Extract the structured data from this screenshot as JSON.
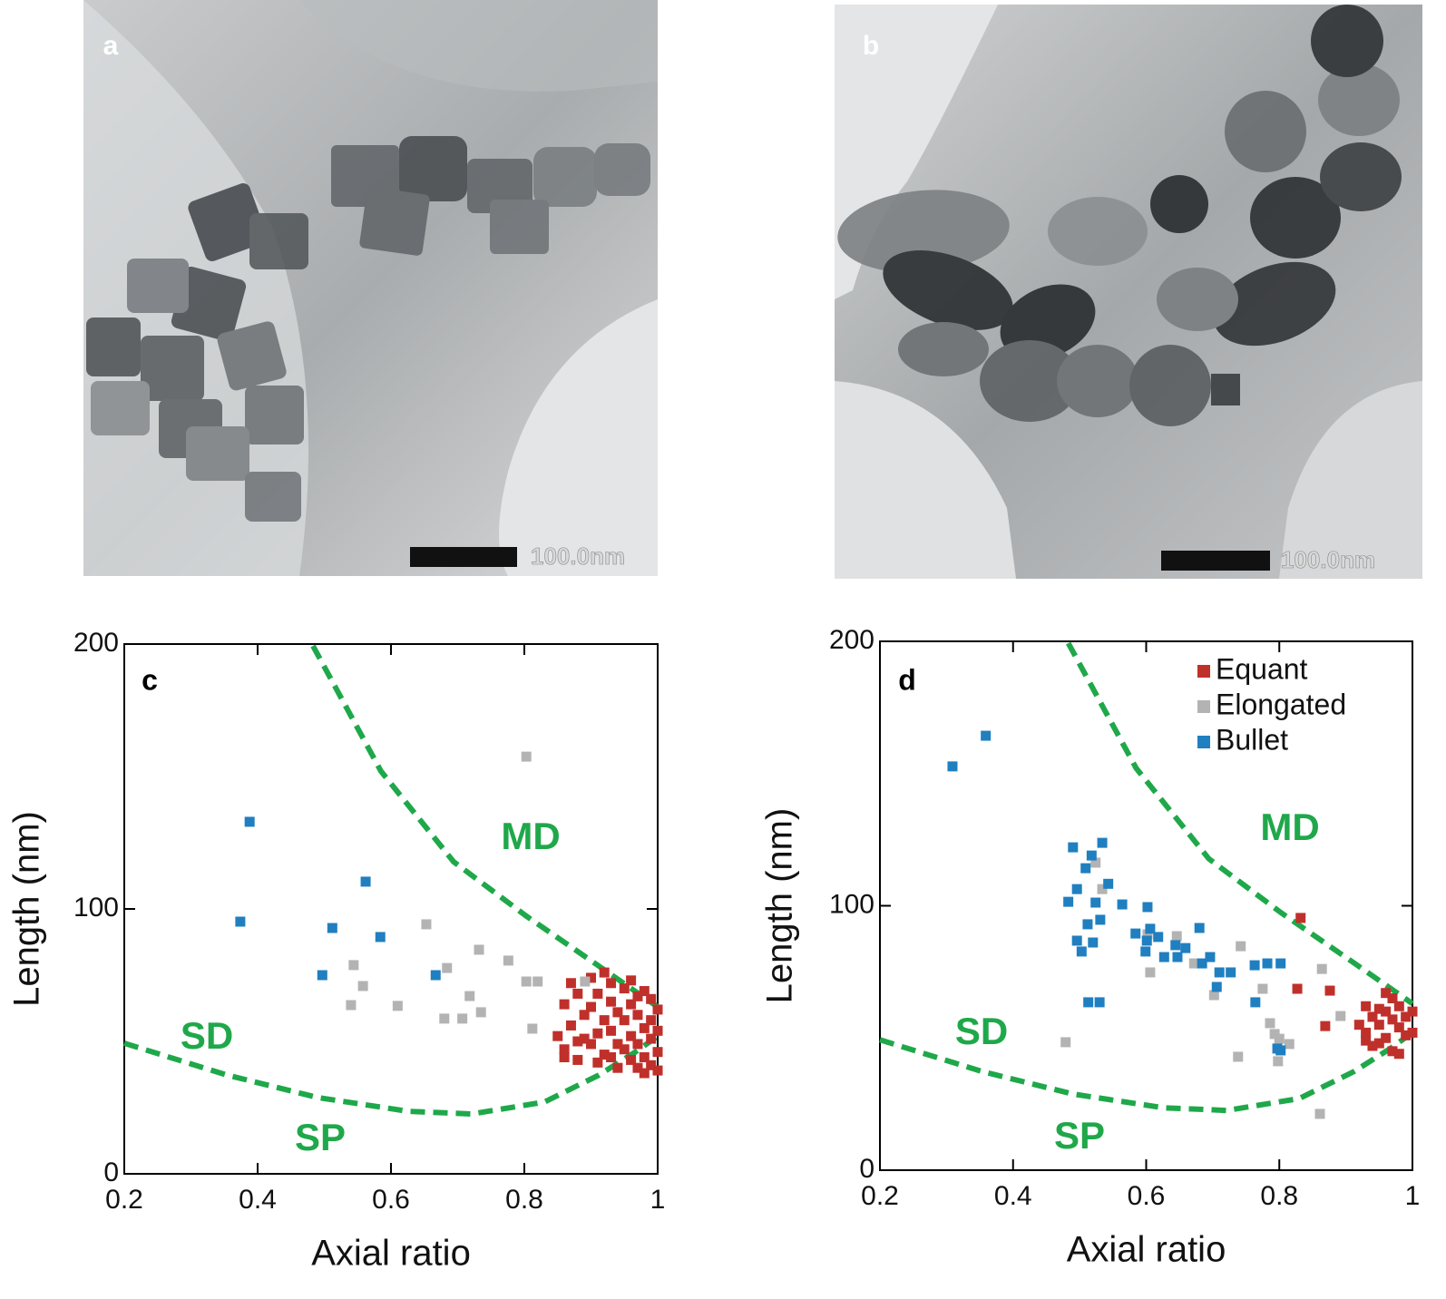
{
  "images": [
    {
      "label": "a",
      "scale_bar": "100.0nm"
    },
    {
      "label": "b",
      "scale_bar": "100.0nm"
    }
  ],
  "chart_data": [
    {
      "type": "scatter",
      "label": "c",
      "xlabel": "Axial ratio",
      "ylabel": "Length (nm)",
      "xlim": [
        0.2,
        1
      ],
      "ylim": [
        0,
        200
      ],
      "xticks": [
        0.2,
        0.4,
        0.6,
        0.8,
        1
      ],
      "yticks": [
        0,
        100,
        200
      ],
      "annotations": [
        "MD",
        "SD",
        "SP"
      ],
      "curves": [
        {
          "color": "#1fa84a",
          "x": [
            0.483,
            0.585,
            0.694,
            0.803,
            0.912,
            1.0
          ],
          "values": [
            199.3,
            152,
            117.8,
            97.3,
            78.4,
            63
          ]
        },
        {
          "color": "#1fa84a",
          "x": [
            0.2,
            0.354,
            0.49,
            0.626,
            0.721,
            0.83,
            0.912,
            0.966,
            1.0
          ],
          "values": [
            49.3,
            37.3,
            28.8,
            23.6,
            22.6,
            27.1,
            37.3,
            45.9,
            52
          ]
        }
      ],
      "series": [
        {
          "color": "#c0302b",
          "x": [
            0.87,
            0.88,
            0.86,
            0.89,
            0.87,
            0.85,
            0.86,
            0.88,
            0.88,
            0.9,
            0.91,
            0.9,
            0.92,
            0.91,
            0.9,
            0.92,
            0.91,
            0.93,
            0.93,
            0.94,
            0.93,
            0.94,
            0.93,
            0.94,
            0.95,
            0.96,
            0.95,
            0.96,
            0.95,
            0.96,
            0.97,
            0.97,
            0.98,
            0.97,
            0.98,
            0.98,
            0.99,
            0.99,
            0.99,
            1.0,
            1.0,
            1.0,
            0.99,
            0.92,
            0.96,
            0.98,
            0.89,
            0.97,
            1.0,
            0.86
          ],
          "values": [
            72,
            68,
            64,
            60,
            56,
            52,
            47,
            43,
            50,
            74,
            68,
            63,
            58,
            53,
            49,
            45,
            42,
            72,
            65,
            61,
            54,
            49,
            44,
            40,
            70,
            64,
            58,
            52,
            47,
            43,
            67,
            60,
            55,
            49,
            44,
            38,
            66,
            58,
            51,
            62,
            54,
            46,
            41,
            76,
            73,
            69,
            51,
            40,
            39,
            44
          ]
        },
        {
          "color": "#b3b3b3",
          "x": [
            0.803,
            0.54,
            0.544,
            0.558,
            0.61,
            0.653,
            0.684,
            0.68,
            0.707,
            0.718,
            0.732,
            0.735,
            0.776,
            0.803,
            0.82,
            0.812,
            0.891
          ],
          "values": [
            157.5,
            63.7,
            78.8,
            70.9,
            63.4,
            94.2,
            77.7,
            58.6,
            58.6,
            67.1,
            84.6,
            61.0,
            80.5,
            72.6,
            72.6,
            54.8,
            72.6
          ]
        },
        {
          "color": "#1f7fc0",
          "x": [
            0.388,
            0.374,
            0.497,
            0.512,
            0.562,
            0.584,
            0.667
          ],
          "values": [
            132.9,
            95.2,
            75.0,
            92.8,
            110.3,
            89.4,
            75.0
          ]
        }
      ]
    },
    {
      "type": "scatter",
      "label": "d",
      "xlabel": "Axial ratio",
      "ylabel": "Length (nm)",
      "xlim": [
        0.2,
        1
      ],
      "ylim": [
        0,
        200
      ],
      "xticks": [
        0.2,
        0.4,
        0.6,
        0.8,
        1
      ],
      "yticks": [
        0,
        100,
        200
      ],
      "annotations": [
        "MD",
        "SD",
        "SP"
      ],
      "legend": "upper right",
      "curves": [
        {
          "color": "#1fa84a",
          "x": [
            0.483,
            0.585,
            0.694,
            0.803,
            0.912,
            1.0
          ],
          "values": [
            199.3,
            152,
            117.8,
            97.3,
            78.4,
            63
          ]
        },
        {
          "color": "#1fa84a",
          "x": [
            0.2,
            0.354,
            0.49,
            0.626,
            0.721,
            0.83,
            0.912,
            0.966,
            1.0
          ],
          "values": [
            49.3,
            37.3,
            28.8,
            23.6,
            22.6,
            27.1,
            37.3,
            45.9,
            52
          ]
        }
      ],
      "series": [
        {
          "name": "Equant",
          "color": "#c0302b",
          "x": [
            0.832,
            0.827,
            0.869,
            0.876,
            0.93,
            0.94,
            0.95,
            0.93,
            0.96,
            0.97,
            0.95,
            0.98,
            0.97,
            0.99,
            0.96,
            0.98,
            0.99,
            1.0,
            0.94,
            0.97,
            0.95,
            0.92,
            0.98,
            0.96,
            1.0,
            0.93
          ],
          "values": [
            95.4,
            68.6,
            54.5,
            67.9,
            62,
            58,
            55,
            52,
            60,
            57,
            48,
            54,
            45,
            51,
            50,
            62,
            58,
            52,
            47,
            65,
            61,
            55,
            44,
            67,
            60,
            49
          ]
        },
        {
          "name": "Elongated",
          "color": "#b3b3b3",
          "x": [
            0.479,
            0.524,
            0.534,
            0.602,
            0.606,
            0.646,
            0.672,
            0.702,
            0.742,
            0.738,
            0.775,
            0.786,
            0.793,
            0.8,
            0.798,
            0.815,
            0.864,
            0.892,
            0.861
          ],
          "values": [
            48.4,
            116.3,
            106.3,
            89.2,
            74.8,
            88.5,
            78.2,
            66.2,
            84.7,
            42.9,
            68.6,
            55.6,
            51.5,
            49.7,
            41.2,
            47.7,
            76.1,
            58.3,
            21.3
          ]
        },
        {
          "name": "Bullet",
          "color": "#1f7fc0",
          "x": [
            0.309,
            0.359,
            0.49,
            0.534,
            0.518,
            0.509,
            0.496,
            0.483,
            0.543,
            0.524,
            0.531,
            0.512,
            0.496,
            0.503,
            0.52,
            0.564,
            0.602,
            0.584,
            0.601,
            0.599,
            0.606,
            0.618,
            0.627,
            0.647,
            0.644,
            0.659,
            0.68,
            0.696,
            0.684,
            0.71,
            0.727,
            0.706,
            0.763,
            0.782,
            0.764,
            0.802,
            0.797,
            0.802,
            0.513,
            0.53
          ],
          "values": [
            152.7,
            164.3,
            122.1,
            123.8,
            119.0,
            114.2,
            106.3,
            101.5,
            108.3,
            101.2,
            94.7,
            93.0,
            86.8,
            82.7,
            86.1,
            100.5,
            99.5,
            89.5,
            86.8,
            82.7,
            91.3,
            88.2,
            80.6,
            80.6,
            85.1,
            84.0,
            91.6,
            80.6,
            78.2,
            74.8,
            74.8,
            69.3,
            77.5,
            78.2,
            63.5,
            78.2,
            46.0,
            45.3,
            63.5,
            63.5
          ]
        }
      ]
    }
  ]
}
